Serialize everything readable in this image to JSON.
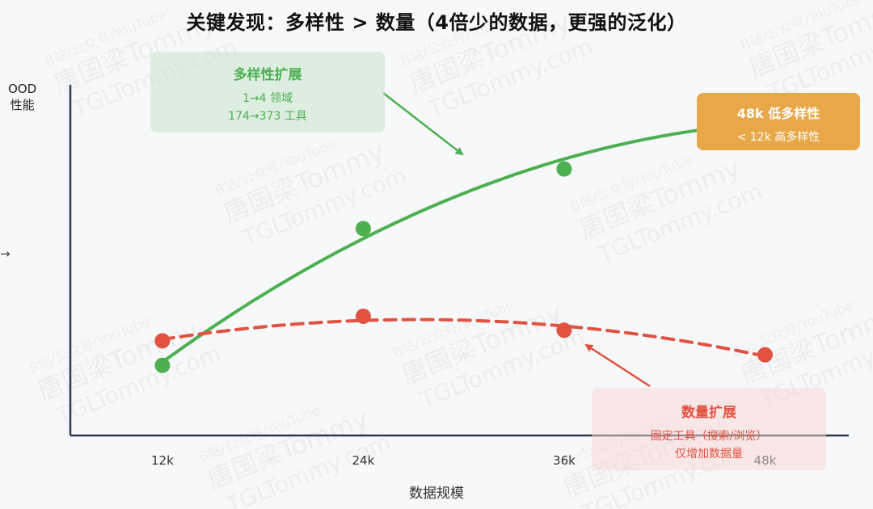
{
  "title": "关键发现：多样性 > 数量（4倍少的数据，更强的泛化）",
  "stray_arrow": "→",
  "watermark": {
    "line1": "B站/公众号/YouTube:",
    "line2": "唐国梁Tommy",
    "line3": "TGLTommy.com"
  },
  "annotations": {
    "diversity": {
      "heading": "多样性扩展",
      "line1": "1→4 领域",
      "line2": "174→373 工具"
    },
    "quantity": {
      "heading": "数量扩展",
      "line1": "固定工具（搜索/浏览）",
      "line2": "仅增加数据量"
    },
    "comparison": {
      "heading": "48k 低多样性",
      "line1": "< 12k 高多样性"
    }
  },
  "colors": {
    "green": "#4caf50",
    "red": "#e15241",
    "orange": "#e8a84a",
    "axis": "#2f3b4c"
  },
  "chart_data": {
    "type": "line",
    "title": "关键发现：多样性 > 数量（4倍少的数据，更强的泛化）",
    "xlabel": "数据规模",
    "ylabel_lines": [
      "OOD",
      "性能"
    ],
    "categories": [
      "12k",
      "24k",
      "36k",
      "48k"
    ],
    "x": [
      12,
      24,
      36,
      48
    ],
    "xlim": [
      6.5,
      53
    ],
    "ylim": [
      0,
      100
    ],
    "y_ticks_shown": false,
    "grid": false,
    "series": [
      {
        "key": "diversity",
        "color": "#4caf50",
        "style": "solid",
        "values": [
          20,
          59,
          76,
          90
        ]
      },
      {
        "key": "quantity",
        "color": "#e15241",
        "style": "dashed",
        "values": [
          27,
          34,
          30,
          23
        ]
      }
    ]
  }
}
